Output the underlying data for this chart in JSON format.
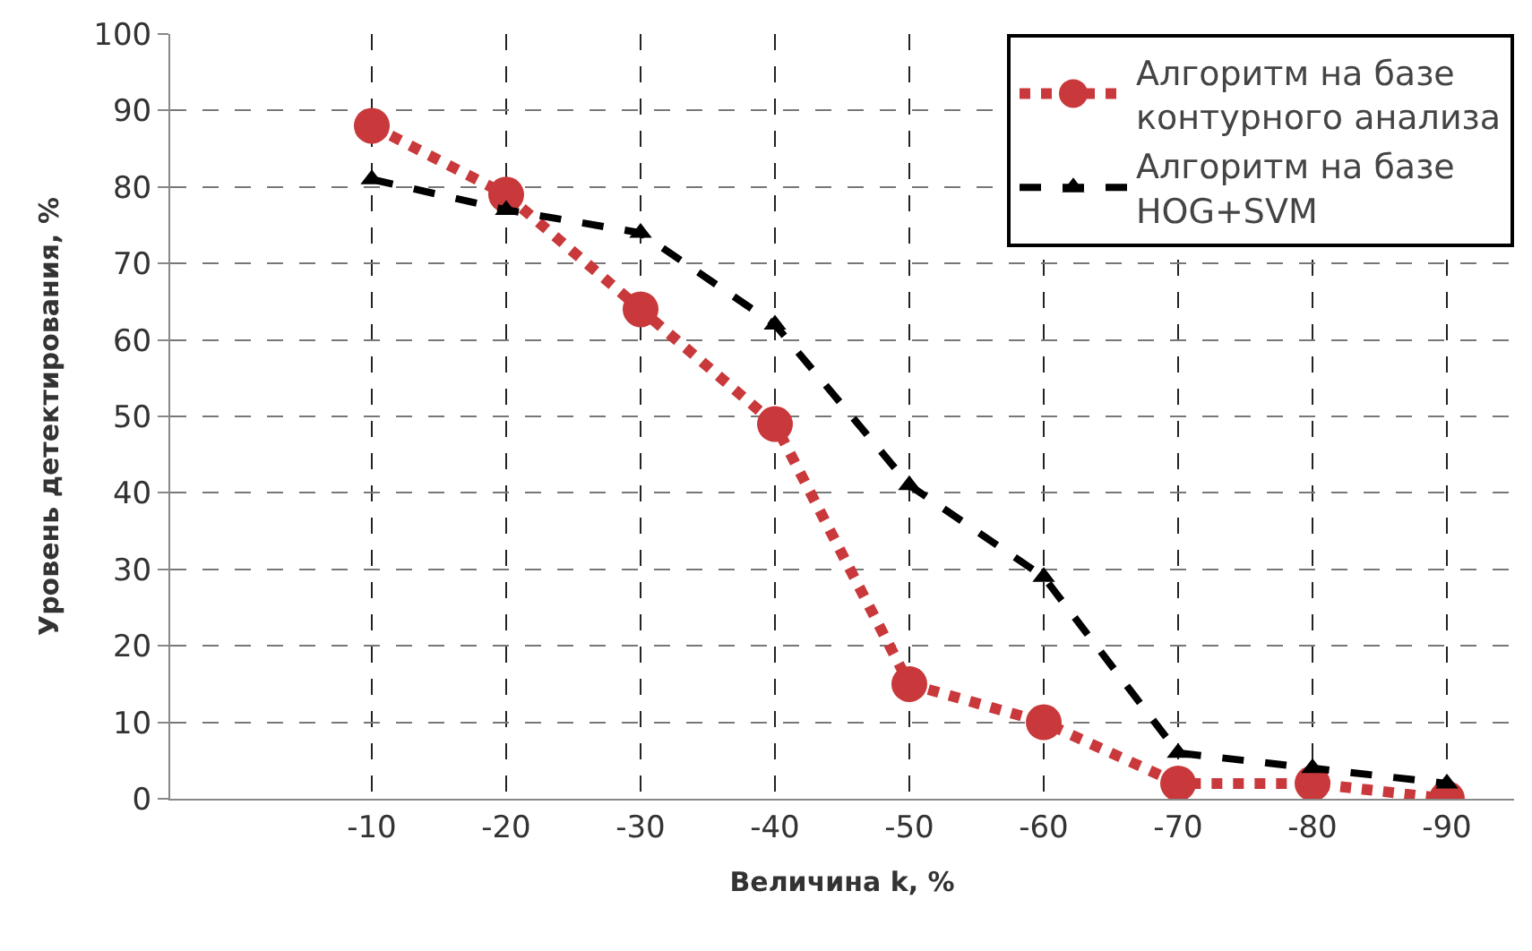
{
  "chart_data": {
    "type": "line",
    "xlabel": "Величина k, %",
    "ylabel": "Уровень детектирования, %",
    "categories": [
      "-10",
      "-20",
      "-30",
      "-40",
      "-50",
      "-60",
      "-70",
      "-80",
      "-90"
    ],
    "series": [
      {
        "name": "Алгоритм на базе контурного анализа",
        "color": "#c9383a",
        "marker": "circle",
        "line_style": "dotted",
        "values": [
          88,
          79,
          64,
          49,
          15,
          10,
          2,
          2,
          0
        ]
      },
      {
        "name": "Алгоритм на базе HOG+SVM",
        "color": "#000000",
        "marker": "triangle",
        "line_style": "dashed",
        "values": [
          81,
          77,
          74,
          62,
          41,
          29,
          6,
          4,
          2
        ]
      }
    ],
    "ylim": [
      0,
      100
    ],
    "yticks": [
      0,
      10,
      20,
      30,
      40,
      50,
      60,
      70,
      80,
      90,
      100
    ],
    "grid": true,
    "legend": "top right"
  }
}
